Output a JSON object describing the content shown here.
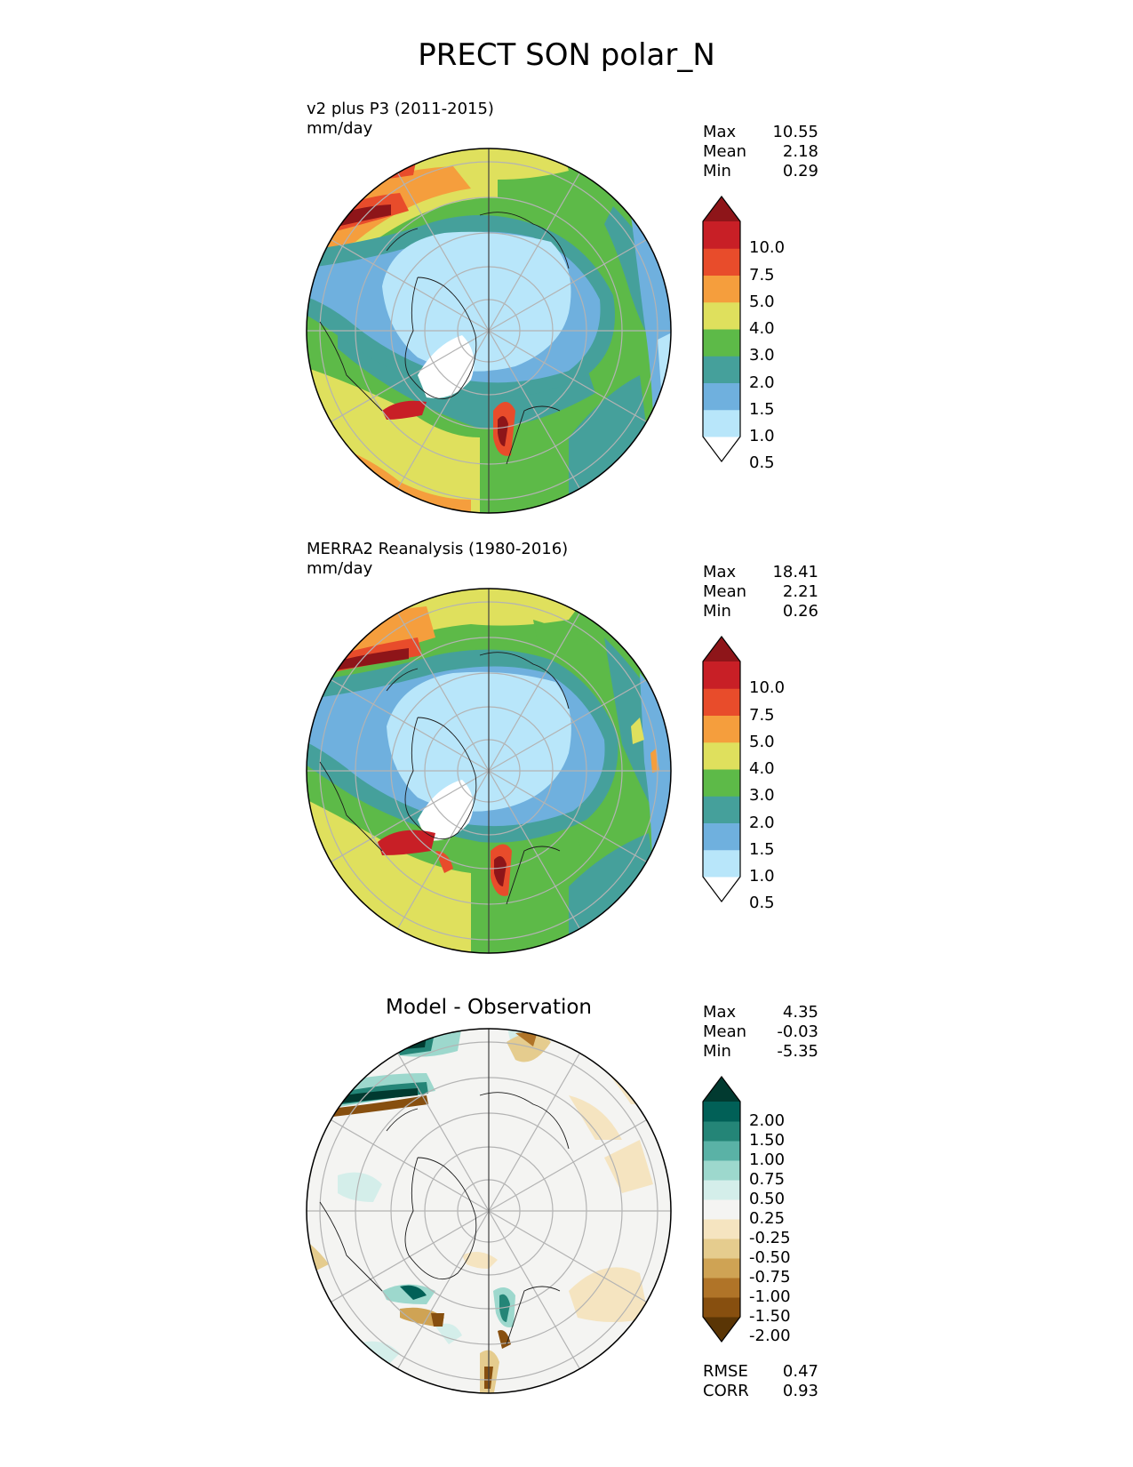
{
  "title": "PRECT SON polar_N",
  "panels": [
    {
      "id": "test",
      "subtitle_line1": "v2 plus P3 (2011-2015)",
      "subtitle_line2": "mm/day",
      "stats": [
        {
          "label": "Max",
          "value": "10.55"
        },
        {
          "label": "Mean",
          "value": "2.18"
        },
        {
          "label": "Min",
          "value": "0.29"
        }
      ],
      "colorbar": {
        "ticks": [
          "10.0",
          "7.5",
          "5.0",
          "4.0",
          "3.0",
          "2.0",
          "1.5",
          "1.0",
          "0.5"
        ],
        "colors": [
          "#ffffff",
          "#b8e6fa",
          "#6fb0de",
          "#45a09b",
          "#5dba48",
          "#dfe05d",
          "#f59e3d",
          "#e84c2b",
          "#c81f26",
          "#8e1519"
        ]
      }
    },
    {
      "id": "ref",
      "subtitle_line1": "MERRA2 Reanalysis (1980-2016)",
      "subtitle_line2": "mm/day",
      "stats": [
        {
          "label": "Max",
          "value": "18.41"
        },
        {
          "label": "Mean",
          "value": "2.21"
        },
        {
          "label": "Min",
          "value": "0.26"
        }
      ],
      "colorbar": {
        "ticks": [
          "10.0",
          "7.5",
          "5.0",
          "4.0",
          "3.0",
          "2.0",
          "1.5",
          "1.0",
          "0.5"
        ],
        "colors": [
          "#ffffff",
          "#b8e6fa",
          "#6fb0de",
          "#45a09b",
          "#5dba48",
          "#dfe05d",
          "#f59e3d",
          "#e84c2b",
          "#c81f26",
          "#8e1519"
        ]
      }
    },
    {
      "id": "diff",
      "title": "Model - Observation",
      "stats": [
        {
          "label": "Max",
          "value": "4.35"
        },
        {
          "label": "Mean",
          "value": "-0.03"
        },
        {
          "label": "Min",
          "value": "-5.35"
        }
      ],
      "metrics": [
        {
          "label": "RMSE",
          "value": "0.47"
        },
        {
          "label": "CORR",
          "value": "0.93"
        }
      ],
      "colorbar": {
        "ticks": [
          "2.00",
          "1.50",
          "1.00",
          "0.75",
          "0.50",
          "0.25",
          "-0.25",
          "-0.50",
          "-0.75",
          "-1.00",
          "-1.50",
          "-2.00"
        ],
        "colors": [
          "#5a3505",
          "#874f0f",
          "#b07428",
          "#cfa354",
          "#e5cc8e",
          "#f5e4c0",
          "#f4f4f2",
          "#d4eeea",
          "#9dd8cd",
          "#5ab2a6",
          "#248577",
          "#016057",
          "#013a30"
        ]
      }
    }
  ]
}
